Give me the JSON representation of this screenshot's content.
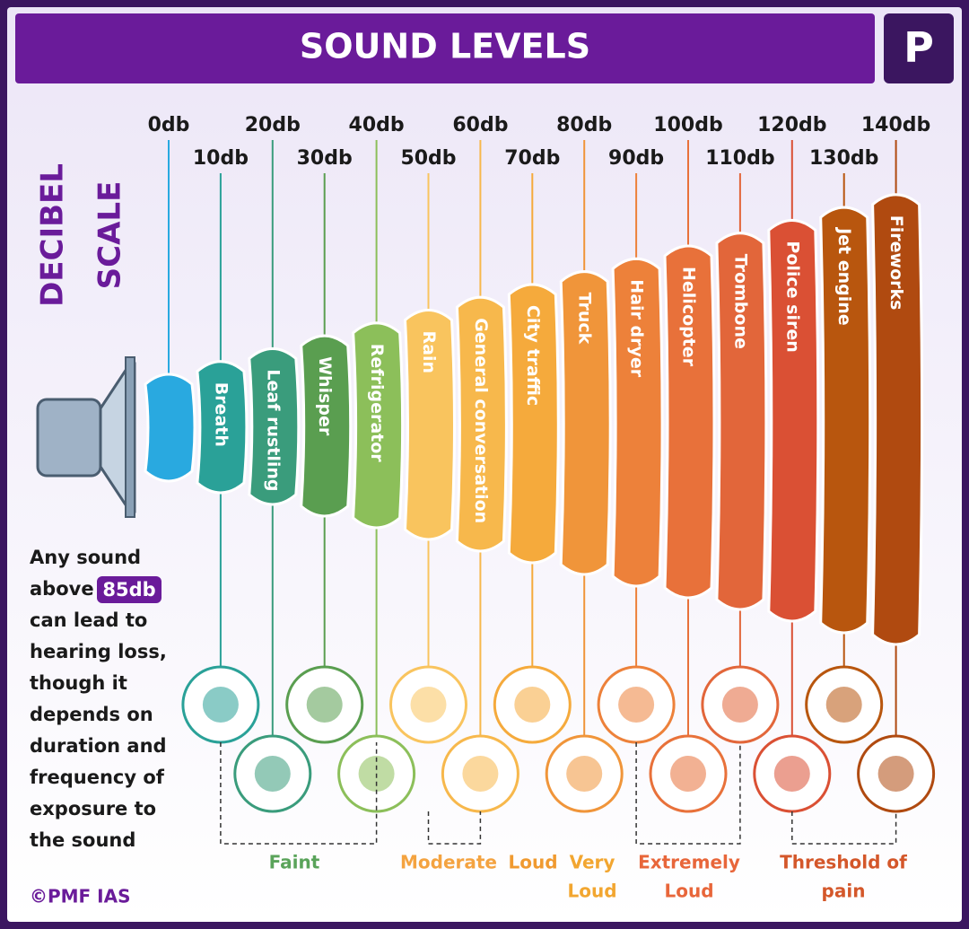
{
  "title": "SOUND LEVELS",
  "logo": "P",
  "side_title": [
    "DECIBEL",
    "SCALE"
  ],
  "levels": [
    {
      "db": "0db",
      "color": "#29a9e0"
    },
    {
      "db": "10db",
      "label": "Breath",
      "color": "#2aa198"
    },
    {
      "db": "20db",
      "label": "Leaf rustling",
      "color": "#3a9c7c"
    },
    {
      "db": "30db",
      "label": "Whisper",
      "color": "#5a9e50"
    },
    {
      "db": "40db",
      "label": "Refrigerator",
      "color": "#8cbf5a"
    },
    {
      "db": "50db",
      "label": "Rain",
      "color": "#f9c45e"
    },
    {
      "db": "60db",
      "label": "General conversation",
      "color": "#f7b84c"
    },
    {
      "db": "70db",
      "label": "City traffic",
      "color": "#f5aa3c"
    },
    {
      "db": "80db",
      "label": "Truck",
      "color": "#f0953a"
    },
    {
      "db": "90db",
      "label": "Hair dryer",
      "color": "#ed813a"
    },
    {
      "db": "100db",
      "label": "Helicopter",
      "color": "#e8713a"
    },
    {
      "db": "110db",
      "label": "Trombone",
      "color": "#e2663a"
    },
    {
      "db": "120db",
      "label": "Police siren",
      "color": "#da5034"
    },
    {
      "db": "130db",
      "label": "Jet engine",
      "color": "#b8560e"
    },
    {
      "db": "140db",
      "label": "Fireworks",
      "color": "#b04a10"
    }
  ],
  "note": {
    "lines": [
      "Any sound",
      "above",
      "can lead to",
      "hearing loss,",
      "though it",
      "depends on",
      "duration and",
      "frequency of",
      "exposure to",
      "the sound"
    ],
    "highlight": "85db"
  },
  "groups": [
    {
      "lines": [
        "Faint"
      ],
      "color": "#5aa35a"
    },
    {
      "lines": [
        "Moderate"
      ],
      "color": "#f4a340"
    },
    {
      "lines": [
        "Loud"
      ],
      "color": "#f09a30"
    },
    {
      "lines": [
        "Very",
        "Loud"
      ],
      "color": "#f2a630"
    },
    {
      "lines": [
        "Extremely",
        "Loud"
      ],
      "color": "#e8663a"
    },
    {
      "lines": [
        "Threshold of",
        "pain"
      ],
      "color": "#d4572a"
    }
  ],
  "copyright": "©PMF IAS"
}
